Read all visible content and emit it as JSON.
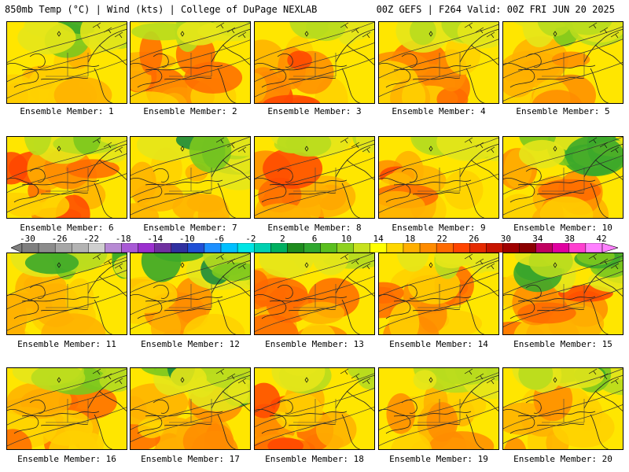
{
  "header": {
    "left": "850mb Temp (°C) | Wind (kts) | College of DuPage NEXLAB",
    "right": "00Z GEFS | F264 Valid: 00Z FRI JUN 20 2025"
  },
  "panel_label_prefix": "Ensemble Member: ",
  "members": [
    {
      "id": 1,
      "label": "Ensemble Member: 1",
      "warm": 0.35,
      "cool": 0.55
    },
    {
      "id": 2,
      "label": "Ensemble Member: 2",
      "warm": 0.55,
      "cool": 0.45
    },
    {
      "id": 3,
      "label": "Ensemble Member: 3",
      "warm": 0.75,
      "cool": 0.25
    },
    {
      "id": 4,
      "label": "Ensemble Member: 4",
      "warm": 0.55,
      "cool": 0.35
    },
    {
      "id": 5,
      "label": "Ensemble Member: 5",
      "warm": 0.45,
      "cool": 0.35
    },
    {
      "id": 6,
      "label": "Ensemble Member: 6",
      "warm": 0.7,
      "cool": 0.4
    },
    {
      "id": 7,
      "label": "Ensemble Member: 7",
      "warm": 0.3,
      "cool": 0.9
    },
    {
      "id": 8,
      "label": "Ensemble Member: 8",
      "warm": 0.7,
      "cool": 0.3
    },
    {
      "id": 9,
      "label": "Ensemble Member: 9",
      "warm": 0.75,
      "cool": 0.3
    },
    {
      "id": 10,
      "label": "Ensemble Member: 10",
      "warm": 0.55,
      "cool": 0.6
    },
    {
      "id": 11,
      "label": "Ensemble Member: 11",
      "warm": 0.4,
      "cool": 0.55
    },
    {
      "id": 12,
      "label": "Ensemble Member: 12",
      "warm": 0.5,
      "cool": 0.7
    },
    {
      "id": 13,
      "label": "Ensemble Member: 13",
      "warm": 0.6,
      "cool": 0.3
    },
    {
      "id": 14,
      "label": "Ensemble Member: 14",
      "warm": 0.65,
      "cool": 0.3
    },
    {
      "id": 15,
      "label": "Ensemble Member: 15",
      "warm": 0.7,
      "cool": 0.75
    },
    {
      "id": 16,
      "label": "Ensemble Member: 16",
      "warm": 0.6,
      "cool": 0.55
    },
    {
      "id": 17,
      "label": "Ensemble Member: 17",
      "warm": 0.55,
      "cool": 0.75
    },
    {
      "id": 18,
      "label": "Ensemble Member: 18",
      "warm": 0.8,
      "cool": 0.3
    },
    {
      "id": 19,
      "label": "Ensemble Member: 19",
      "warm": 0.45,
      "cool": 0.55
    },
    {
      "id": 20,
      "label": "Ensemble Member: 20",
      "warm": 0.35,
      "cool": 0.5
    }
  ],
  "colorbar": {
    "labels": [
      "-30",
      "-26",
      "-22",
      "-18",
      "-14",
      "-10",
      "-6",
      "-2",
      "2",
      "6",
      "10",
      "14",
      "18",
      "22",
      "26",
      "30",
      "34",
      "38",
      "42"
    ],
    "colors": [
      "#7f7f7f",
      "#8c8c8c",
      "#a6a6a6",
      "#b3b3b3",
      "#cfcfcf",
      "#b78ad4",
      "#a95ad6",
      "#9b2fcf",
      "#7030a0",
      "#3030a0",
      "#1f4fd6",
      "#1e90ff",
      "#00bfff",
      "#00e5e5",
      "#00d0b0",
      "#00b060",
      "#1e8c1e",
      "#2fa82f",
      "#5bbf1f",
      "#8fd21f",
      "#c7e21f",
      "#ffff00",
      "#ffd700",
      "#ffb000",
      "#ff8c00",
      "#ff6a00",
      "#ff4500",
      "#e62a00",
      "#c81400",
      "#a00000",
      "#8b0000",
      "#c00060",
      "#e000a0",
      "#ff40d0",
      "#ff80ff"
    ]
  },
  "palette": {
    "warm": [
      "#ffd000",
      "#ffb000",
      "#ff8c00",
      "#ff6a00",
      "#ff4500"
    ],
    "cool": [
      "#e6e61a",
      "#b8dc1e",
      "#7cc81e",
      "#3ca82a",
      "#1e8c3c",
      "#00c8c8"
    ]
  }
}
